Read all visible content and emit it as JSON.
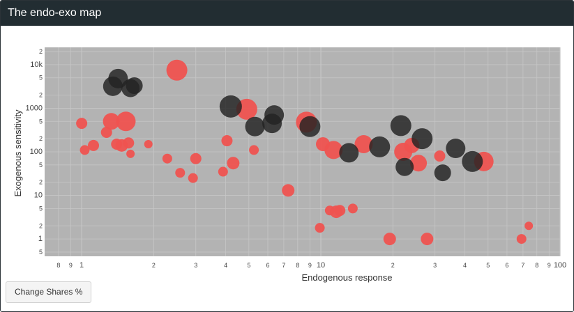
{
  "panel": {
    "title": "The endo-exo map"
  },
  "button": {
    "label": "Change Shares %"
  },
  "colors": {
    "red": "#ef5350",
    "dark": "#222222",
    "plot_bg": "#b3b3b3",
    "grid": "#c6c6c6"
  },
  "chart_data": {
    "type": "scatter",
    "title": "",
    "xlabel": "Endogenous response",
    "ylabel": "Exogenous sensitivity",
    "x_scale": "log",
    "y_scale": "log",
    "xlim": [
      0.7,
      100
    ],
    "ylim": [
      0.4,
      25000
    ],
    "grid": true,
    "legend": "none",
    "x_tick_labels": [
      "8",
      "9",
      "1",
      "2",
      "3",
      "4",
      "5",
      "6",
      "7",
      "8",
      "9",
      "10",
      "2",
      "3",
      "4",
      "5",
      "6",
      "7",
      "8",
      "9",
      "100"
    ],
    "y_tick_labels": [
      "5",
      "1",
      "2",
      "5",
      "10",
      "2",
      "5",
      "100",
      "2",
      "5",
      "1000",
      "2",
      "5",
      "10k",
      "2"
    ],
    "series": [
      {
        "color": "red",
        "points": [
          {
            "x": 1.0,
            "y": 450,
            "s": 8
          },
          {
            "x": 1.03,
            "y": 110,
            "s": 7
          },
          {
            "x": 1.12,
            "y": 140,
            "s": 8
          },
          {
            "x": 1.27,
            "y": 280,
            "s": 8
          },
          {
            "x": 1.33,
            "y": 500,
            "s": 12
          },
          {
            "x": 1.4,
            "y": 150,
            "s": 8
          },
          {
            "x": 1.47,
            "y": 140,
            "s": 9
          },
          {
            "x": 1.53,
            "y": 500,
            "s": 14
          },
          {
            "x": 1.57,
            "y": 160,
            "s": 8
          },
          {
            "x": 1.6,
            "y": 90,
            "s": 6
          },
          {
            "x": 1.9,
            "y": 150,
            "s": 6
          },
          {
            "x": 2.28,
            "y": 70,
            "s": 7
          },
          {
            "x": 2.5,
            "y": 7500,
            "s": 15
          },
          {
            "x": 2.58,
            "y": 33,
            "s": 7
          },
          {
            "x": 2.92,
            "y": 25,
            "s": 7
          },
          {
            "x": 3.0,
            "y": 70,
            "s": 8
          },
          {
            "x": 3.9,
            "y": 35,
            "s": 7
          },
          {
            "x": 4.05,
            "y": 180,
            "s": 8
          },
          {
            "x": 4.3,
            "y": 55,
            "s": 9
          },
          {
            "x": 4.9,
            "y": 950,
            "s": 15
          },
          {
            "x": 5.25,
            "y": 110,
            "s": 7
          },
          {
            "x": 7.3,
            "y": 13,
            "s": 9
          },
          {
            "x": 8.7,
            "y": 480,
            "s": 15
          },
          {
            "x": 9.9,
            "y": 1.8,
            "s": 7
          },
          {
            "x": 10.2,
            "y": 150,
            "s": 10
          },
          {
            "x": 10.9,
            "y": 4.5,
            "s": 7
          },
          {
            "x": 11.3,
            "y": 110,
            "s": 13
          },
          {
            "x": 11.6,
            "y": 4.2,
            "s": 9
          },
          {
            "x": 12.0,
            "y": 4.5,
            "s": 8
          },
          {
            "x": 13.6,
            "y": 5,
            "s": 7
          },
          {
            "x": 15.1,
            "y": 150,
            "s": 13
          },
          {
            "x": 19.4,
            "y": 1.0,
            "s": 9
          },
          {
            "x": 22.1,
            "y": 100,
            "s": 13
          },
          {
            "x": 24.0,
            "y": 140,
            "s": 11
          },
          {
            "x": 25.6,
            "y": 55,
            "s": 12
          },
          {
            "x": 27.8,
            "y": 1.0,
            "s": 9
          },
          {
            "x": 31.4,
            "y": 80,
            "s": 8
          },
          {
            "x": 48.0,
            "y": 60,
            "s": 14
          },
          {
            "x": 69.0,
            "y": 1.0,
            "s": 7
          },
          {
            "x": 74.0,
            "y": 2.0,
            "s": 6
          }
        ]
      },
      {
        "color": "dark",
        "points": [
          {
            "x": 1.42,
            "y": 4800,
            "s": 14
          },
          {
            "x": 1.35,
            "y": 3200,
            "s": 14
          },
          {
            "x": 1.6,
            "y": 2900,
            "s": 13
          },
          {
            "x": 1.66,
            "y": 3300,
            "s": 12
          },
          {
            "x": 4.2,
            "y": 1100,
            "s": 16
          },
          {
            "x": 5.3,
            "y": 380,
            "s": 14
          },
          {
            "x": 6.38,
            "y": 700,
            "s": 14
          },
          {
            "x": 6.25,
            "y": 450,
            "s": 14
          },
          {
            "x": 9.0,
            "y": 380,
            "s": 15
          },
          {
            "x": 13.1,
            "y": 95,
            "s": 14
          },
          {
            "x": 17.6,
            "y": 130,
            "s": 15
          },
          {
            "x": 21.6,
            "y": 400,
            "s": 15
          },
          {
            "x": 22.4,
            "y": 45,
            "s": 13
          },
          {
            "x": 26.5,
            "y": 200,
            "s": 15
          },
          {
            "x": 32.3,
            "y": 33,
            "s": 12
          },
          {
            "x": 36.6,
            "y": 120,
            "s": 14
          },
          {
            "x": 43.0,
            "y": 60,
            "s": 15
          }
        ]
      }
    ]
  }
}
